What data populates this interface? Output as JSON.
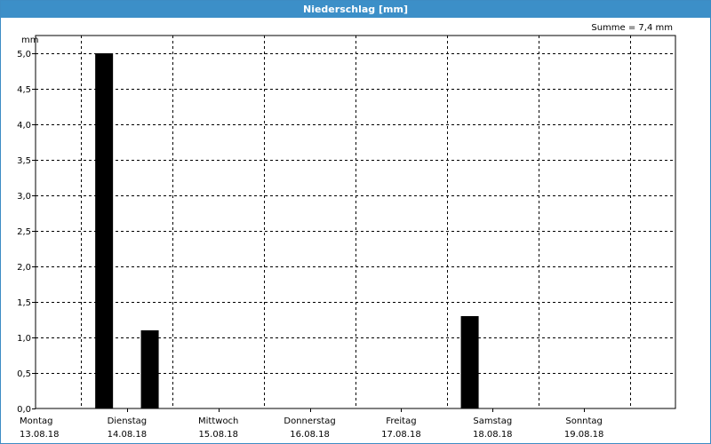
{
  "window": {
    "title": "Niederschlag [mm]"
  },
  "summary": "Summe = 7,4 mm",
  "chart_data": {
    "type": "bar",
    "ylabel": "mm",
    "ylim": [
      0,
      5
    ],
    "yticks": [
      "0,0",
      "0,5",
      "1,0",
      "1,5",
      "2,0",
      "2,5",
      "3,0",
      "3,5",
      "4,0",
      "4,5",
      "5,0"
    ],
    "grid": true,
    "x_days": [
      {
        "day": "Montag",
        "date": "13.08.18"
      },
      {
        "day": "Dienstag",
        "date": "14.08.18"
      },
      {
        "day": "Mittwoch",
        "date": "15.08.18"
      },
      {
        "day": "Donnerstag",
        "date": "16.08.18"
      },
      {
        "day": "Freitag",
        "date": "17.08.18"
      },
      {
        "day": "Samstag",
        "date": "18.08.18"
      },
      {
        "day": "Sonntag",
        "date": "19.08.18"
      }
    ],
    "bars": [
      {
        "date": "13.08.18",
        "slot": "18:00",
        "value": 5.0
      },
      {
        "date": "14.08.18",
        "slot": "06:00",
        "value": 1.1
      },
      {
        "date": "17.08.18",
        "slot": "18:00",
        "value": 1.3
      }
    ],
    "bar_color": "#000000"
  }
}
